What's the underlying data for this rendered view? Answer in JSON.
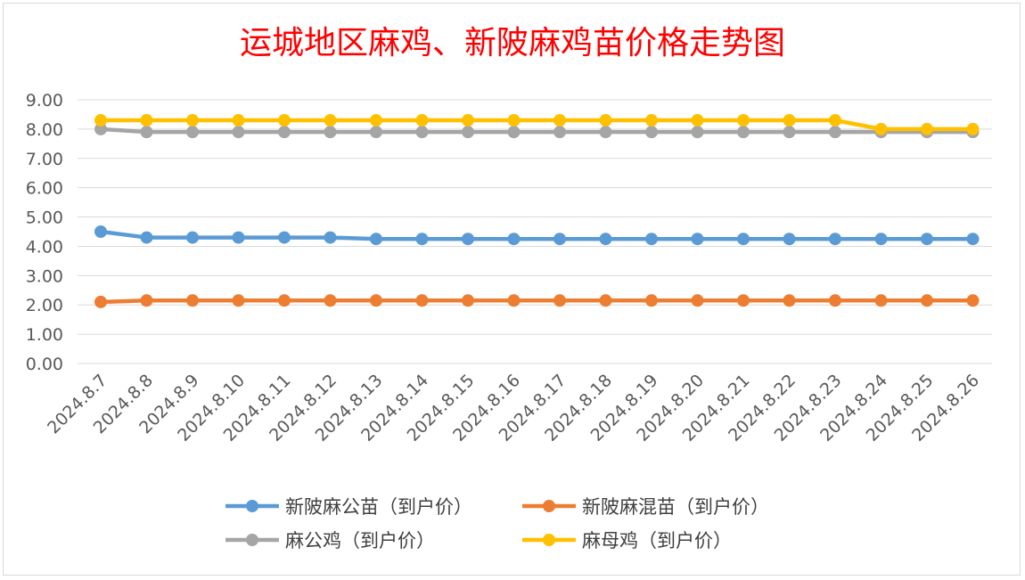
{
  "chart_data": {
    "type": "line",
    "title": "运城地区麻鸡、新陂麻鸡苗价格走势图",
    "xlabel": "",
    "ylabel": "",
    "ylim": [
      0,
      9
    ],
    "yticks": [
      "0.00",
      "1.00",
      "2.00",
      "3.00",
      "4.00",
      "5.00",
      "6.00",
      "7.00",
      "8.00",
      "9.00"
    ],
    "grid": true,
    "legend_position": "bottom",
    "categories": [
      "2024.8.7",
      "2024.8.8",
      "2024.8.9",
      "2024.8.10",
      "2024.8.11",
      "2024.8.12",
      "2024.8.13",
      "2024.8.14",
      "2024.8.15",
      "2024.8.16",
      "2024.8.17",
      "2024.8.18",
      "2024.8.19",
      "2024.8.20",
      "2024.8.21",
      "2024.8.22",
      "2024.8.23",
      "2024.8.24",
      "2024.8.25",
      "2024.8.26"
    ],
    "series": [
      {
        "name": "新陂麻公苗（到户价）",
        "color": "#5b9bd5",
        "values": [
          4.5,
          4.3,
          4.3,
          4.3,
          4.3,
          4.3,
          4.25,
          4.25,
          4.25,
          4.25,
          4.25,
          4.25,
          4.25,
          4.25,
          4.25,
          4.25,
          4.25,
          4.25,
          4.25,
          4.25
        ]
      },
      {
        "name": "新陂麻混苗（到户价）",
        "color": "#ed7d31",
        "values": [
          2.1,
          2.15,
          2.15,
          2.15,
          2.15,
          2.15,
          2.15,
          2.15,
          2.15,
          2.15,
          2.15,
          2.15,
          2.15,
          2.15,
          2.15,
          2.15,
          2.15,
          2.15,
          2.15,
          2.15
        ]
      },
      {
        "name": "麻公鸡（到户价）",
        "color": "#a5a5a5",
        "values": [
          8.0,
          7.9,
          7.9,
          7.9,
          7.9,
          7.9,
          7.9,
          7.9,
          7.9,
          7.9,
          7.9,
          7.9,
          7.9,
          7.9,
          7.9,
          7.9,
          7.9,
          7.9,
          7.9,
          7.9
        ]
      },
      {
        "name": "麻母鸡（到户价）",
        "color": "#ffc000",
        "values": [
          8.3,
          8.3,
          8.3,
          8.3,
          8.3,
          8.3,
          8.3,
          8.3,
          8.3,
          8.3,
          8.3,
          8.3,
          8.3,
          8.3,
          8.3,
          8.3,
          8.3,
          8.0,
          8.0,
          8.0
        ]
      }
    ]
  }
}
